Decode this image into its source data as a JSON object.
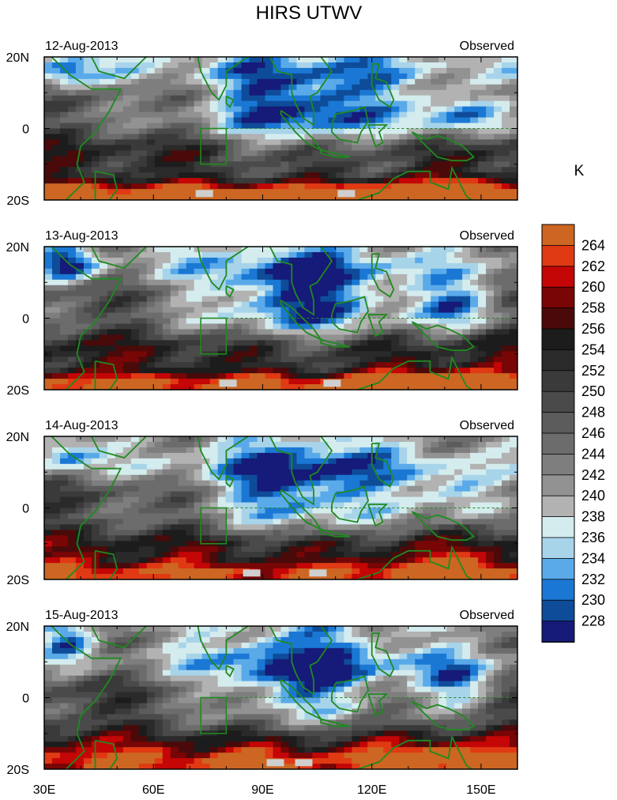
{
  "title": "HIRS UTWV",
  "unit_label": "K",
  "lat_labels": [
    "20N",
    "0",
    "20S"
  ],
  "lon_labels": [
    "30E",
    "60E",
    "90E",
    "120E",
    "150E"
  ],
  "panels": [
    {
      "date": "12-Aug-2013",
      "tag": "Observed"
    },
    {
      "date": "13-Aug-2013",
      "tag": "Observed"
    },
    {
      "date": "14-Aug-2013",
      "tag": "Observed"
    },
    {
      "date": "15-Aug-2013",
      "tag": "Observed"
    }
  ],
  "colorbar": {
    "labels": [
      "264",
      "262",
      "260",
      "258",
      "256",
      "254",
      "252",
      "250",
      "248",
      "246",
      "244",
      "242",
      "240",
      "238",
      "236",
      "234",
      "232",
      "230",
      "228"
    ],
    "colors": [
      "#cc6622",
      "#e03a14",
      "#c40606",
      "#780606",
      "#4a0a0a",
      "#1c1c1c",
      "#2a2a2a",
      "#3a3a3a",
      "#4a4a4a",
      "#5c5c5c",
      "#6c6c6c",
      "#7e7e7e",
      "#929292",
      "#b2b2b2",
      "#d4ecee",
      "#a8d4ea",
      "#5aaaea",
      "#1a78d4",
      "#0e4c9a",
      "#161a78"
    ]
  },
  "colors": {
    "coast": "#1f8a1f",
    "frame": "#000000"
  }
}
